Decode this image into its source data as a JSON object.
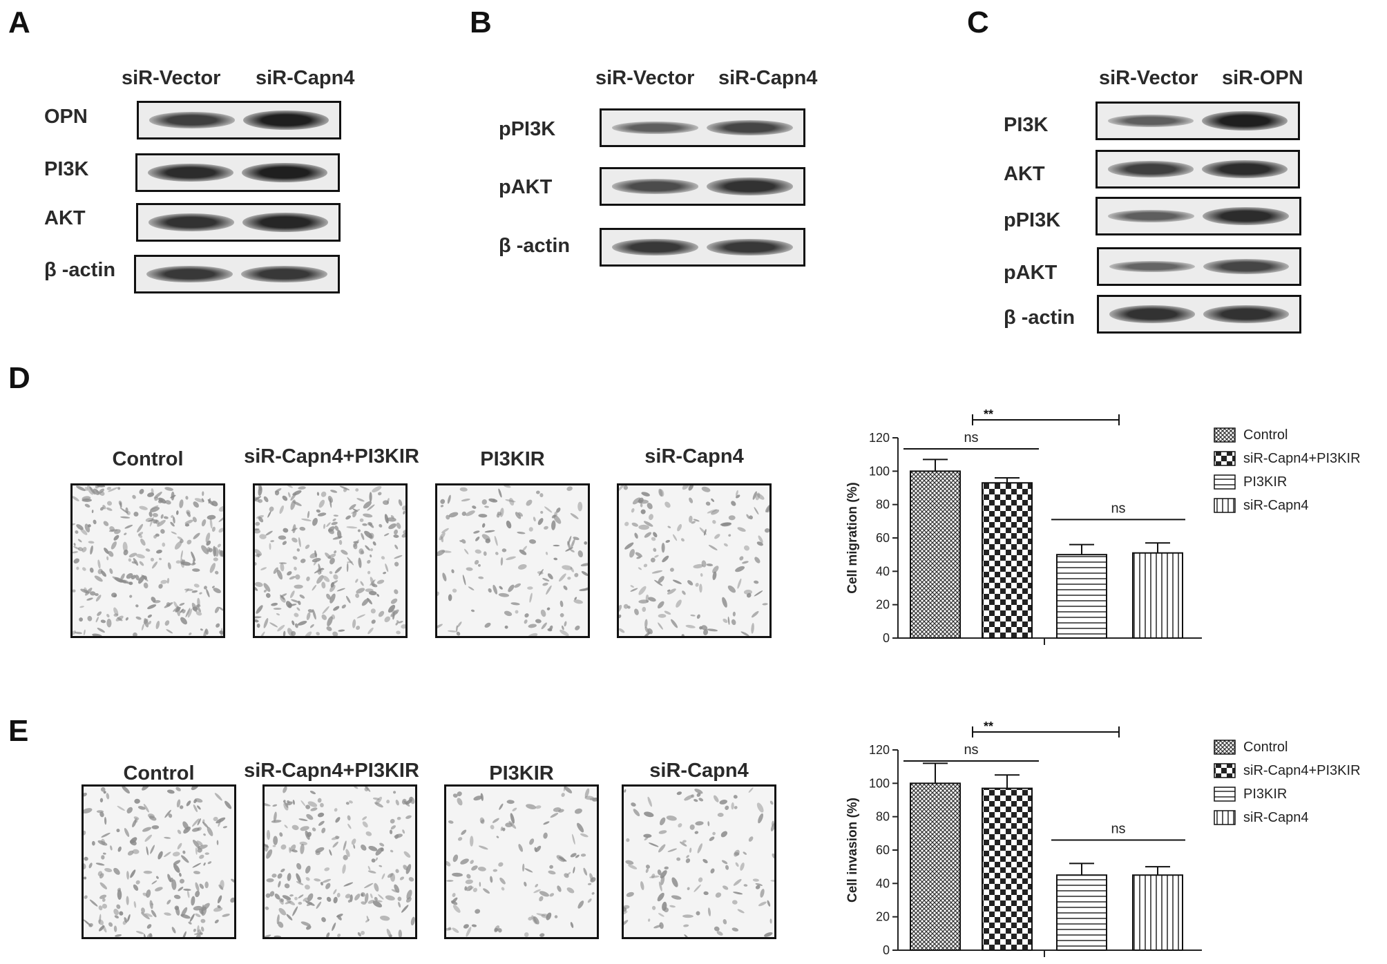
{
  "panels": {
    "A": {
      "letter": "A",
      "columns": [
        "siR-Vector",
        "siR-Capn4"
      ],
      "rows": [
        {
          "label": "OPN",
          "intensity": [
            0.7,
            0.95
          ]
        },
        {
          "label": "PI3K",
          "intensity": [
            0.85,
            0.95
          ]
        },
        {
          "label": "AKT",
          "intensity": [
            0.8,
            0.9
          ]
        },
        {
          "label": "β -actin",
          "intensity": [
            0.75,
            0.75
          ]
        }
      ]
    },
    "B": {
      "letter": "B",
      "columns": [
        "siR-Vector",
        "siR-Capn4"
      ],
      "rows": [
        {
          "label": "pPI3K",
          "intensity": [
            0.45,
            0.65
          ]
        },
        {
          "label": "pAKT",
          "intensity": [
            0.6,
            0.8
          ]
        },
        {
          "label": "β -actin",
          "intensity": [
            0.75,
            0.75
          ]
        }
      ]
    },
    "C": {
      "letter": "C",
      "columns": [
        "siR-Vector",
        "siR-OPN"
      ],
      "rows": [
        {
          "label": "PI3K",
          "intensity": [
            0.45,
            0.95
          ]
        },
        {
          "label": "AKT",
          "intensity": [
            0.7,
            0.85
          ]
        },
        {
          "label": "pPI3K",
          "intensity": [
            0.45,
            0.85
          ]
        },
        {
          "label": "pAKT",
          "intensity": [
            0.4,
            0.65
          ]
        },
        {
          "label": "β -actin",
          "intensity": [
            0.8,
            0.8
          ]
        }
      ]
    },
    "D": {
      "letter": "D",
      "images": [
        "Control",
        "siR-Capn4+PI3KIR",
        "PI3KIR",
        "siR-Capn4"
      ],
      "density": [
        1.0,
        0.95,
        0.55,
        0.55
      ]
    },
    "E": {
      "letter": "E",
      "images": [
        "Control",
        "siR-Capn4+PI3KIR",
        "PI3KIR",
        "siR-Capn4"
      ],
      "density": [
        0.75,
        0.75,
        0.45,
        0.45
      ]
    }
  },
  "chart_data": [
    {
      "type": "bar",
      "panel": "D",
      "categories": [
        "Control",
        "siR-Capn4+PI3KIR",
        "PI3KIR",
        "siR-Capn4"
      ],
      "values": [
        100,
        93,
        50,
        51
      ],
      "errors": [
        7,
        3,
        6,
        6
      ],
      "ylabel": "Cell migration (%)",
      "xlabel": "",
      "ylim": [
        0,
        120
      ],
      "yticks": [
        0,
        20,
        40,
        60,
        80,
        100,
        120
      ],
      "legend": [
        "Control",
        "siR-Capn4+PI3KIR",
        "PI3KIR",
        "siR-Capn4"
      ],
      "legend_position": "right",
      "annotations": [
        {
          "text": "**",
          "from": 1,
          "to": 2
        },
        {
          "text": "ns",
          "from": 0,
          "to": 1
        },
        {
          "text": "ns",
          "from": 2,
          "to": 3
        }
      ]
    },
    {
      "type": "bar",
      "panel": "E",
      "categories": [
        "Control",
        "siR-Capn4+PI3KIR",
        "PI3KIR",
        "siR-Capn4"
      ],
      "values": [
        100,
        97,
        45,
        45
      ],
      "errors": [
        12,
        8,
        7,
        5
      ],
      "ylabel": "Cell invasion (%)",
      "xlabel": "",
      "ylim": [
        0,
        120
      ],
      "yticks": [
        0,
        20,
        40,
        60,
        80,
        100,
        120
      ],
      "legend": [
        "Control",
        "siR-Capn4+PI3KIR",
        "PI3KIR",
        "siR-Capn4"
      ],
      "legend_position": "right",
      "annotations": [
        {
          "text": "**",
          "from": 1,
          "to": 2
        },
        {
          "text": "ns",
          "from": 0,
          "to": 1
        },
        {
          "text": "ns",
          "from": 2,
          "to": 3
        }
      ]
    }
  ]
}
